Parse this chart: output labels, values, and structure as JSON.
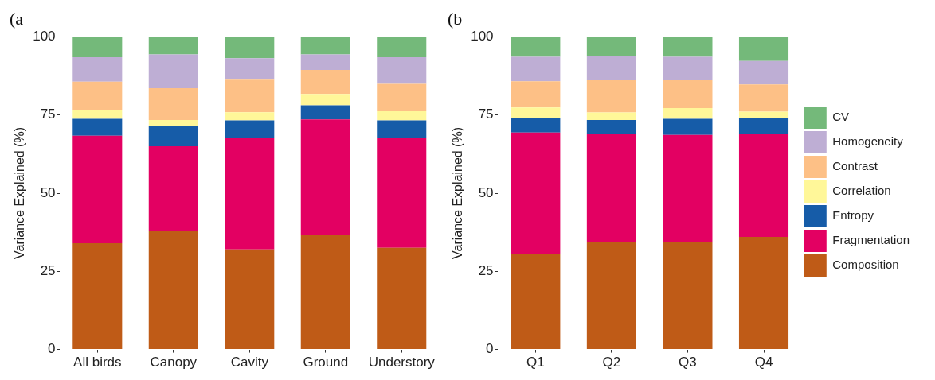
{
  "chart_data": [
    {
      "type": "bar",
      "title": "(a",
      "ylabel": "Variance Explained (%)",
      "categories": [
        "All birds",
        "Canopy",
        "Cavity",
        "Ground",
        "Understory"
      ],
      "stacked": true,
      "ylim": [
        0,
        100
      ],
      "yticks": [
        0,
        25,
        50,
        75,
        100
      ],
      "grid": false,
      "legend": false,
      "series": [
        {
          "color": "#bf5b17",
          "values": [
            34.0,
            38.0,
            32.0,
            36.8,
            32.5
          ]
        },
        {
          "color": "#e30062",
          "values": [
            34.4,
            27.0,
            35.6,
            36.8,
            35.3
          ]
        },
        {
          "color": "#165ca8",
          "values": [
            5.4,
            6.5,
            5.7,
            4.5,
            5.5
          ]
        },
        {
          "color": "#fff799",
          "values": [
            2.9,
            1.9,
            2.6,
            3.6,
            2.9
          ]
        },
        {
          "color": "#fdc086",
          "values": [
            9.0,
            10.2,
            10.4,
            7.7,
            8.8
          ]
        },
        {
          "color": "#beaed4",
          "values": [
            7.8,
            10.8,
            6.9,
            5.0,
            8.5
          ]
        },
        {
          "color": "#74b97a",
          "values": [
            6.5,
            5.6,
            6.8,
            5.6,
            6.5
          ]
        }
      ]
    },
    {
      "type": "bar",
      "title": "(b",
      "ylabel": "Variance Explained (%)",
      "categories": [
        "Q1",
        "Q2",
        "Q3",
        "Q4"
      ],
      "stacked": true,
      "ylim": [
        0,
        100
      ],
      "yticks": [
        0,
        25,
        50,
        75,
        100
      ],
      "grid": false,
      "legend": "right",
      "series": [
        {
          "name": "Composition",
          "color": "#bf5b17",
          "values": [
            30.7,
            34.5,
            34.5,
            36.0
          ]
        },
        {
          "name": "Fragmentation",
          "color": "#e30062",
          "values": [
            38.7,
            34.6,
            34.1,
            32.9
          ]
        },
        {
          "name": "Entropy",
          "color": "#165ca8",
          "values": [
            4.6,
            4.3,
            5.2,
            5.1
          ]
        },
        {
          "name": "Correlation",
          "color": "#fff799",
          "values": [
            3.4,
            2.4,
            3.4,
            2.1
          ]
        },
        {
          "name": "Contrast",
          "color": "#fdc086",
          "values": [
            8.4,
            10.3,
            8.9,
            8.7
          ]
        },
        {
          "name": "Homogeneity",
          "color": "#beaed4",
          "values": [
            7.8,
            7.8,
            7.5,
            7.5
          ]
        },
        {
          "name": "CV",
          "color": "#74b97a",
          "values": [
            6.4,
            6.1,
            6.4,
            7.7
          ]
        }
      ]
    }
  ]
}
